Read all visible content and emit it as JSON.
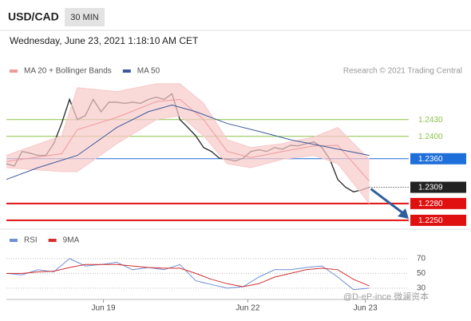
{
  "header": {
    "symbol": "USD/CAD",
    "interval": "30 MIN",
    "timestamp": "Wednesday, June 23, 2021 1:18:10 AM CET",
    "copyright": "Research © 2021 Trading Central",
    "watermark": "@D-eP-ince 微澜资本"
  },
  "chart_data": [
    {
      "type": "line",
      "xlim": [
        0,
        51
      ],
      "ylim": [
        1.2237,
        1.2501
      ],
      "series": [
        {
          "color": "#333333",
          "x": [
            0,
            1,
            2,
            3,
            4,
            5,
            6,
            7,
            8,
            9,
            10,
            11,
            12,
            13,
            14,
            15,
            16,
            17,
            18,
            19,
            20,
            21,
            22,
            23,
            24,
            25,
            26,
            27,
            28,
            29,
            30,
            31,
            32,
            33,
            34,
            35,
            36,
            37,
            38,
            39,
            40,
            41,
            42,
            43,
            44,
            45,
            46
          ],
          "values": [
            1.2351,
            1.2347,
            1.2373,
            1.237,
            1.2366,
            1.2366,
            1.2387,
            1.2423,
            1.2466,
            1.243,
            1.2437,
            1.2466,
            1.2444,
            1.2461,
            1.2461,
            1.2459,
            1.2461,
            1.2459,
            1.2466,
            1.247,
            1.2466,
            1.2476,
            1.243,
            1.2416,
            1.2401,
            1.238,
            1.2373,
            1.2361,
            1.2359,
            1.2356,
            1.2361,
            1.2373,
            1.2376,
            1.2373,
            1.238,
            1.2377,
            1.2384,
            1.2383,
            1.2387,
            1.239,
            1.238,
            1.2359,
            1.2323,
            1.2309,
            1.2301,
            1.2304,
            1.2309
          ]
        },
        {
          "name": "MA 20 + Bollinger Bands",
          "color": "#ef9a9a",
          "band_color": "#f8c9c9",
          "x": [
            0,
            7,
            9,
            14,
            19,
            22,
            25,
            28,
            31,
            35,
            39,
            42,
            46
          ],
          "values": [
            1.2355,
            1.2369,
            1.2412,
            1.2434,
            1.2462,
            1.2466,
            1.243,
            1.2373,
            1.2362,
            1.2373,
            1.2383,
            1.2384,
            1.232
          ],
          "upper": [
            1.2366,
            1.2401,
            1.2487,
            1.248,
            1.2494,
            1.2494,
            1.2459,
            1.2394,
            1.238,
            1.2387,
            1.2399,
            1.2416,
            1.2359
          ],
          "lower": [
            1.2344,
            1.2337,
            1.2337,
            1.2387,
            1.243,
            1.2437,
            1.2401,
            1.2351,
            1.2344,
            1.2359,
            1.2366,
            1.2351,
            1.228
          ]
        },
        {
          "name": "MA 50",
          "color": "#3c5a9a",
          "x": [
            0,
            4,
            9,
            14,
            18,
            21,
            24,
            28,
            32,
            36,
            41,
            46
          ],
          "values": [
            1.2323,
            1.2344,
            1.2366,
            1.2416,
            1.2444,
            1.2456,
            1.2444,
            1.2423,
            1.2409,
            1.2394,
            1.238,
            1.2366
          ]
        }
      ],
      "levels": [
        {
          "value": 1.243,
          "label": "1.2430",
          "color": "#8bc34a",
          "style": "plain"
        },
        {
          "value": 1.24,
          "label": "1.2400",
          "color": "#8bc34a",
          "style": "plain"
        },
        {
          "value": 1.236,
          "label": "1.2360",
          "color": "#1e6fd9",
          "style": "box"
        },
        {
          "value": 1.2309,
          "label": "1.2309",
          "color": "#222222",
          "style": "dotted"
        },
        {
          "value": 1.228,
          "label": "1.2280",
          "color": "#e01010",
          "style": "box"
        },
        {
          "value": 1.225,
          "label": "1.2250",
          "color": "#e01010",
          "style": "box"
        }
      ]
    },
    {
      "type": "line",
      "xlim": [
        0,
        51
      ],
      "ylim": [
        18,
        85
      ],
      "yticks": [
        70,
        50,
        30
      ],
      "xticks": [
        {
          "value": 12.3,
          "label": "Jun 19"
        },
        {
          "value": 30.6,
          "label": "Jun 22"
        },
        {
          "value": 45.5,
          "label": "Jun 23"
        }
      ],
      "series": [
        {
          "name": "RSI",
          "color": "#6f8fd6",
          "x": [
            0,
            2,
            4,
            6,
            8,
            10,
            12,
            14,
            16,
            18,
            20,
            22,
            24,
            26,
            28,
            30,
            32,
            34,
            36,
            38,
            40,
            42,
            44,
            46
          ],
          "values": [
            50,
            48,
            55,
            52,
            70,
            60,
            62,
            65,
            55,
            58,
            55,
            62,
            40,
            35,
            30,
            32,
            45,
            55,
            55,
            58,
            60,
            45,
            28,
            30
          ]
        },
        {
          "name": "9MA",
          "color": "#d32f2f",
          "x": [
            0,
            2,
            4,
            6,
            8,
            10,
            12,
            14,
            16,
            18,
            20,
            22,
            24,
            26,
            28,
            30,
            32,
            34,
            36,
            38,
            40,
            42,
            44,
            46
          ],
          "values": [
            50,
            50,
            52,
            53,
            58,
            62,
            62,
            62,
            60,
            58,
            57,
            57,
            50,
            42,
            36,
            32,
            36,
            45,
            50,
            55,
            57,
            55,
            42,
            33
          ]
        }
      ]
    }
  ]
}
